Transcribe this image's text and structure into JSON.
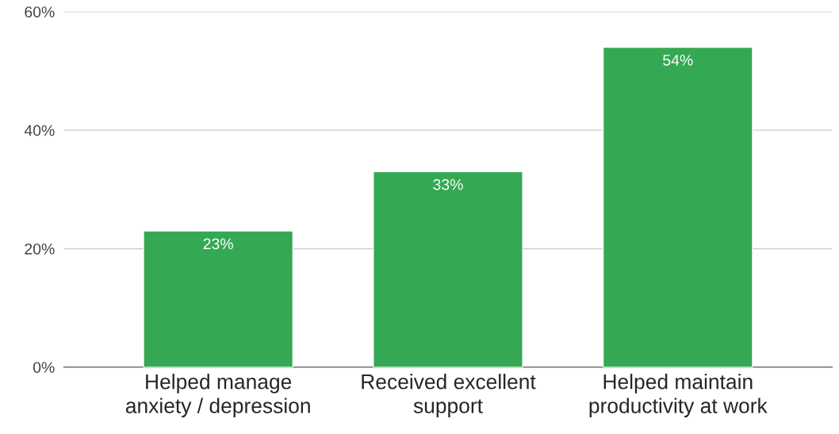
{
  "chart_data": {
    "type": "bar",
    "categories": [
      "Helped manage\nanxiety / depression",
      "Received excellent\nsupport",
      "Helped maintain\nproductivity at work"
    ],
    "values": [
      23,
      33,
      54
    ],
    "value_labels": [
      "23%",
      "33%",
      "54%"
    ],
    "color": "#34a853",
    "ylim": [
      0,
      60
    ],
    "yticks": [
      {
        "value": 0,
        "label": "0%"
      },
      {
        "value": 20,
        "label": "20%"
      },
      {
        "value": 40,
        "label": "40%"
      },
      {
        "value": 60,
        "label": "60%"
      }
    ],
    "grid": "y",
    "legend": false
  }
}
